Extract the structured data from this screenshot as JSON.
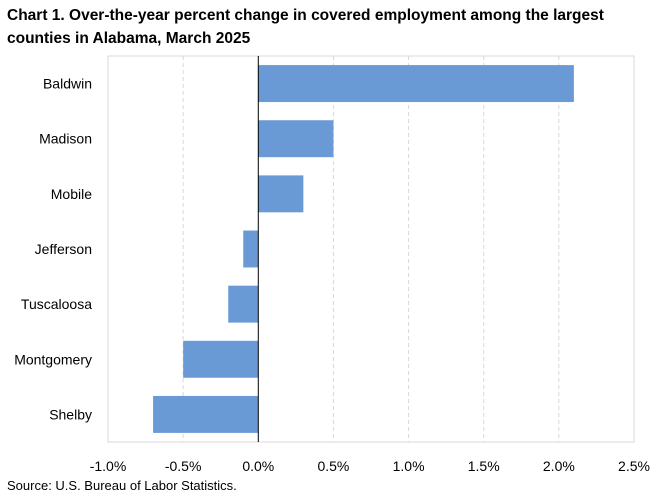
{
  "chart_data": {
    "type": "bar",
    "orientation": "horizontal",
    "title": "Chart 1. Over-the-year percent change in covered employment among the largest counties in Alabama, March 2025",
    "source": "Source: U.S. Bureau of Labor Statistics.",
    "categories": [
      "Baldwin",
      "Madison",
      "Mobile",
      "Jefferson",
      "Tuscaloosa",
      "Montgomery",
      "Shelby"
    ],
    "values": [
      2.1,
      0.5,
      0.3,
      -0.1,
      -0.2,
      -0.5,
      -0.7
    ],
    "xlim": [
      -1.0,
      2.5
    ],
    "xticks": [
      -1.0,
      -0.5,
      0.0,
      0.5,
      1.0,
      1.5,
      2.0,
      2.5
    ],
    "xtick_labels": [
      "-1.0%",
      "-0.5%",
      "0.0%",
      "0.5%",
      "1.0%",
      "1.5%",
      "2.0%",
      "2.5%"
    ],
    "xlabel": "",
    "ylabel": "",
    "grid": "vertical-dashed",
    "bar_color": "#6a9ad6",
    "grid_color": "#d9d9d9",
    "axis_color": "#000000"
  }
}
